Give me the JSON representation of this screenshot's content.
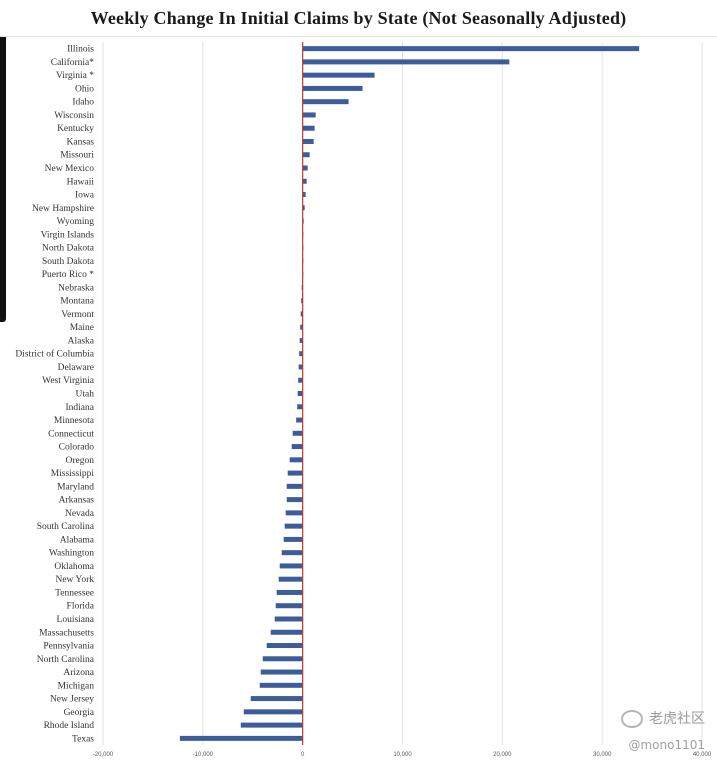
{
  "chart_data": {
    "type": "bar",
    "orientation": "horizontal",
    "title": "Weekly Change In Initial Claims by State (Not Seasonally Adjusted)",
    "xlabel": "",
    "ylabel": "",
    "xlim": [
      -20000,
      40000
    ],
    "x_ticks": [
      "-20,000",
      "-10,000",
      "0",
      "10,000",
      "20,000",
      "30,000",
      "40,000"
    ],
    "x_tick_values": [
      -20000,
      -10000,
      0,
      10000,
      20000,
      30000,
      40000
    ],
    "grid": true,
    "legend": "none",
    "bar_color": "#3d5c9a",
    "zero_line_color": "#c0392b",
    "categories": [
      "Illinois",
      "California*",
      "Virginia *",
      "Ohio",
      "Idaho",
      "Wisconsin",
      "Kentucky",
      "Kansas",
      "Missouri",
      "New Mexico",
      "Hawaii",
      "Iowa",
      "New Hampshire",
      "Wyoming",
      "Virgin Islands",
      "North Dakota",
      "South Dakota",
      "Puerto Rico *",
      "Nebraska",
      "Montana",
      "Vermont",
      "Maine",
      "Alaska",
      "District of Columbia",
      "Delaware",
      "West Virginia",
      "Utah",
      "Indiana",
      "Minnesota",
      "Connecticut",
      "Colorado",
      "Oregon",
      "Mississippi",
      "Maryland",
      "Arkansas",
      "Nevada",
      "South Carolina",
      "Alabama",
      "Washington",
      "Oklahoma",
      "New York",
      "Tennessee",
      "Florida",
      "Louisiana",
      "Massachusetts",
      "Pennsylvania",
      "North Carolina",
      "Arizona",
      "Michigan",
      "New Jersey",
      "Georgia",
      "Rhode Island",
      "Texas"
    ],
    "values": [
      33700,
      20700,
      7200,
      6000,
      4600,
      1300,
      1200,
      1100,
      700,
      500,
      400,
      300,
      200,
      100,
      50,
      30,
      20,
      0,
      -100,
      -150,
      -200,
      -250,
      -300,
      -350,
      -400,
      -450,
      -500,
      -550,
      -650,
      -1000,
      -1100,
      -1300,
      -1500,
      -1600,
      -1600,
      -1700,
      -1800,
      -1900,
      -2100,
      -2300,
      -2400,
      -2600,
      -2700,
      -2800,
      -3200,
      -3600,
      -4000,
      -4200,
      -4300,
      -5200,
      -5900,
      -6200,
      -12300
    ]
  },
  "watermark": {
    "brand": "老虎社区",
    "handle": "@mono1101"
  },
  "colors": {
    "background": "#ffffff",
    "grid": "#e2e2e2"
  }
}
